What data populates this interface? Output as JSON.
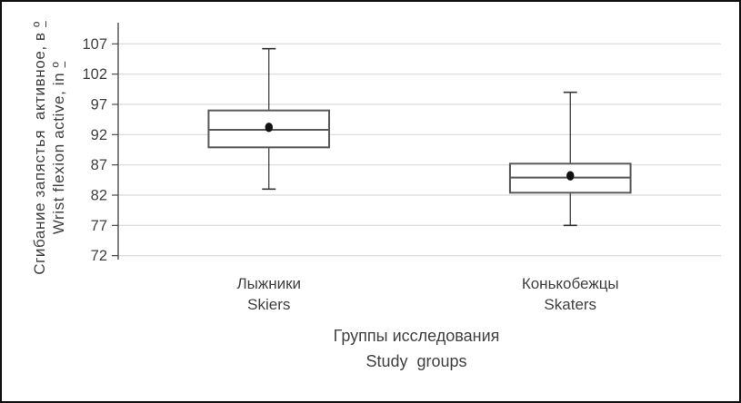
{
  "chart_data": {
    "type": "box",
    "title": "",
    "grid": true,
    "legend": "none",
    "y_axis": {
      "title_ru": "Сгибание запястья  активное, в º",
      "title_en": "Wrist flexion active, in º",
      "ticks": [
        107,
        102,
        97,
        92,
        87,
        82,
        77,
        72
      ],
      "min": 71.5,
      "max": 110.5
    },
    "x_axis": {
      "title_ru": "Группы исследования",
      "title_en": "Study  groups"
    },
    "groups": [
      {
        "label_ru": "Лыжники",
        "label_en": "Skiers",
        "whisker_low": 83,
        "q1": 89.9,
        "median": 92.8,
        "mean": 93.2,
        "q3": 96,
        "whisker_high": 106.2
      },
      {
        "label_ru": "Конькобежцы",
        "label_en": "Skaters",
        "whisker_low": 77,
        "q1": 82.4,
        "median": 84.9,
        "mean": 85.2,
        "q3": 87.2,
        "whisker_high": 99
      }
    ],
    "colors": {
      "grid": "#d9d9d9",
      "axis": "#4d4d4d",
      "box_stroke": "#595959",
      "box_fill": "#ffffff",
      "whisker": "#333333",
      "mean_dot": "#111111",
      "text": "#404040",
      "frame": "#111111"
    }
  }
}
